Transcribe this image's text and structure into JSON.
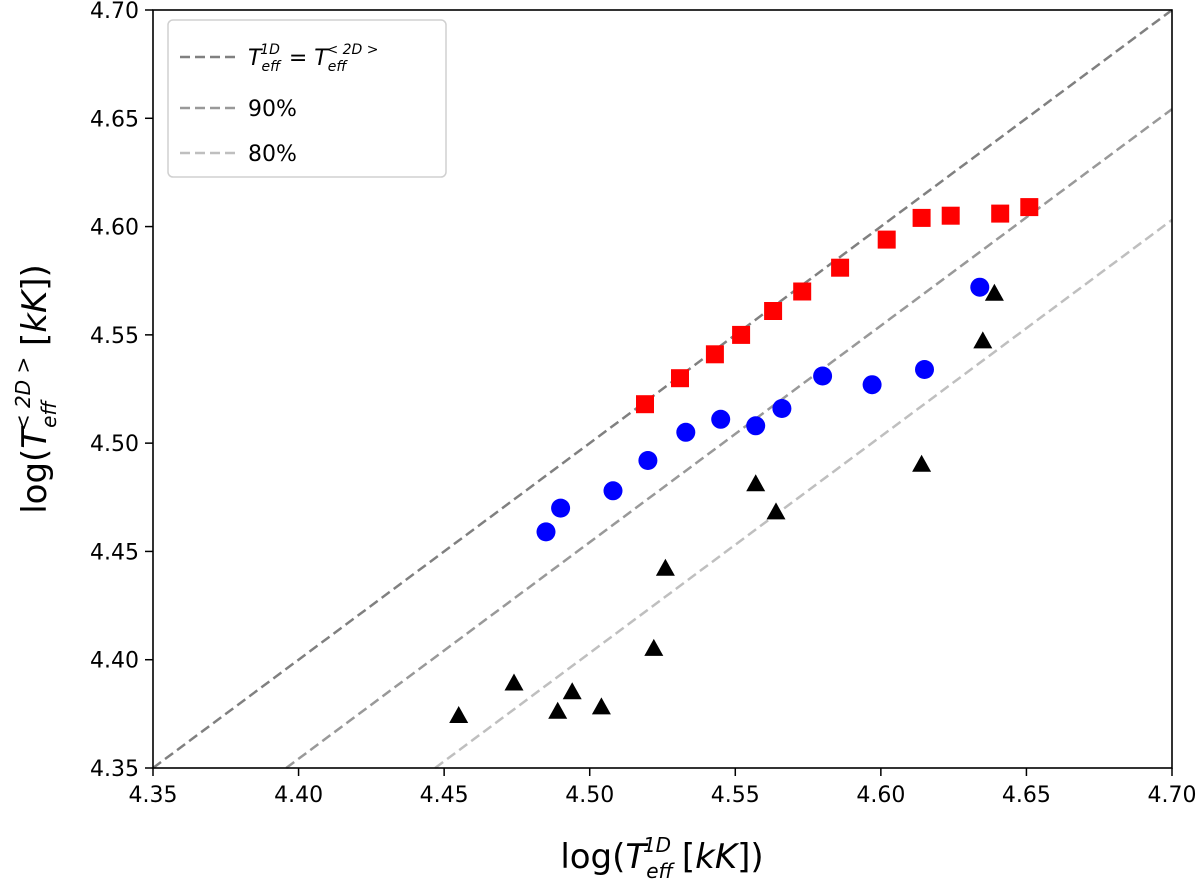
{
  "chart_data": {
    "type": "scatter",
    "xlim": [
      4.35,
      4.7
    ],
    "ylim": [
      4.35,
      4.7
    ],
    "xticks": [
      "4.35",
      "4.40",
      "4.45",
      "4.50",
      "4.55",
      "4.60",
      "4.65",
      "4.70"
    ],
    "yticks": [
      "4.35",
      "4.40",
      "4.45",
      "4.50",
      "4.55",
      "4.60",
      "4.65",
      "4.70"
    ],
    "xlabel": {
      "pre": "log(",
      "var": "T",
      "sub": "eff",
      "sup": "1D",
      "post": " [kK])"
    },
    "ylabel": {
      "pre": "log(",
      "var": "T",
      "sub": "eff",
      "sup": "< 2D >",
      "post": " [kK])"
    },
    "reference_lines": [
      {
        "name": "90%",
        "factor": 0.9,
        "color": "#999999"
      },
      {
        "name": "80%",
        "factor": 0.8,
        "color": "#bfbfbf"
      }
    ],
    "identity_line": {
      "color": "#808080"
    },
    "legend": {
      "position": "top-left",
      "entries": [
        {
          "key": "identity",
          "var1": "T",
          "sub1": "eff",
          "sup1": "1D",
          "eq": "=",
          "var2": "T",
          "sub2": "eff",
          "sup2": "< 2D >"
        },
        {
          "key": "p90",
          "label": "90%"
        },
        {
          "key": "p80",
          "label": "80%"
        }
      ]
    },
    "series": [
      {
        "name": "squares",
        "marker": "square",
        "color": "#ff0000",
        "points": [
          [
            4.519,
            4.518
          ],
          [
            4.531,
            4.53
          ],
          [
            4.543,
            4.541
          ],
          [
            4.552,
            4.55
          ],
          [
            4.563,
            4.561
          ],
          [
            4.573,
            4.57
          ],
          [
            4.586,
            4.581
          ],
          [
            4.602,
            4.594
          ],
          [
            4.614,
            4.604
          ],
          [
            4.624,
            4.605
          ],
          [
            4.641,
            4.606
          ],
          [
            4.651,
            4.609
          ]
        ]
      },
      {
        "name": "circles",
        "marker": "circle",
        "color": "#0000ff",
        "points": [
          [
            4.485,
            4.459
          ],
          [
            4.49,
            4.47
          ],
          [
            4.508,
            4.478
          ],
          [
            4.52,
            4.492
          ],
          [
            4.533,
            4.505
          ],
          [
            4.545,
            4.511
          ],
          [
            4.557,
            4.508
          ],
          [
            4.566,
            4.516
          ],
          [
            4.58,
            4.531
          ],
          [
            4.597,
            4.527
          ],
          [
            4.615,
            4.534
          ],
          [
            4.634,
            4.572
          ]
        ]
      },
      {
        "name": "triangles",
        "marker": "triangle",
        "color": "#000000",
        "points": [
          [
            4.455,
            4.374
          ],
          [
            4.474,
            4.389
          ],
          [
            4.489,
            4.376
          ],
          [
            4.494,
            4.385
          ],
          [
            4.504,
            4.378
          ],
          [
            4.522,
            4.405
          ],
          [
            4.526,
            4.442
          ],
          [
            4.557,
            4.481
          ],
          [
            4.564,
            4.468
          ],
          [
            4.614,
            4.49
          ],
          [
            4.635,
            4.547
          ],
          [
            4.639,
            4.569
          ]
        ]
      }
    ]
  }
}
